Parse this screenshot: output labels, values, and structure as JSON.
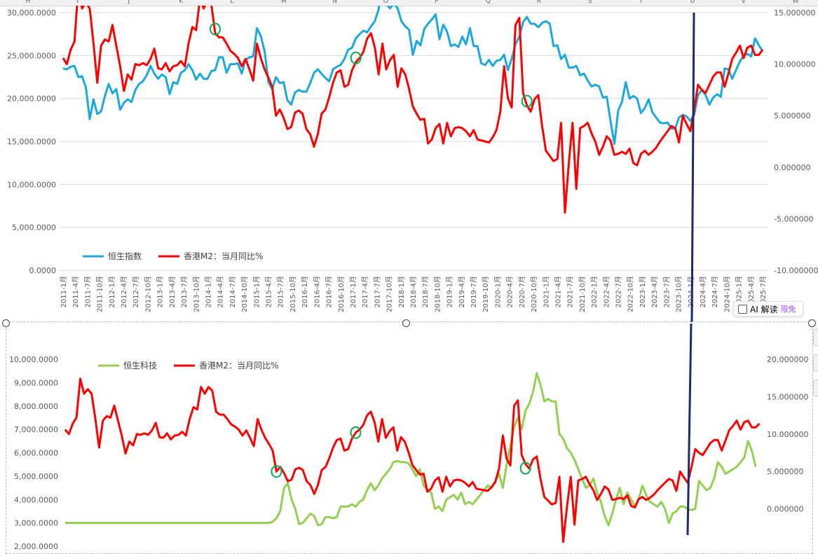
{
  "spreadsheet": {
    "column_headers": [
      "H",
      "I",
      "J",
      "K",
      "L",
      "M",
      "N",
      "O",
      "P",
      "Q",
      "R",
      "S",
      "T",
      "U",
      "V",
      "W"
    ]
  },
  "ai_badge": {
    "label": "AI 解读",
    "free_label": "限免"
  },
  "chart_data": [
    {
      "type": "line",
      "title": "",
      "x_labels": [
        "2011-1月",
        "2011-4月",
        "2011-7月",
        "2011-10月",
        "2012-1月",
        "2012-4月",
        "2012-7月",
        "2012-10月",
        "2013-1月",
        "2013-4月",
        "2013-7月",
        "2013-10月",
        "2014-1月",
        "2014-4月",
        "2014-7月",
        "2014-10月",
        "2015-1月",
        "2015-4月",
        "2015-7月",
        "2015-10月",
        "2016-1月",
        "2016-4月",
        "2016-7月",
        "2016-10月",
        "2017-1月",
        "2017-4月",
        "2017-7月",
        "2017-10月",
        "2018-1月",
        "2018-4月",
        "2018-7月",
        "2018-10月",
        "2019-1月",
        "2019-4月",
        "2019-7月",
        "2019-10月",
        "2020-1月",
        "2020-4月",
        "2020-7月",
        "2020-10月",
        "2021-1月",
        "2021-4月",
        "2021-7月",
        "2021-10月",
        "2022-1月",
        "2022-4月",
        "2022-7月",
        "2022-10月",
        "2023-1月",
        "2023-4月",
        "2023-7月",
        "2023-10月",
        "2024-1月",
        "2024-4月",
        "2024-7月",
        "2024-10月",
        "2025-1月",
        "2025-4月",
        "2025-7月"
      ],
      "y_left": {
        "min": 0,
        "max": 30000,
        "ticks": [
          "0.0000",
          "5,000.0000",
          "10,000.0000",
          "15,000.0000",
          "20,000.0000",
          "25,000.0000",
          "30,000.0000"
        ]
      },
      "y_right": {
        "min": -10,
        "max": 15,
        "ticks": [
          "-10.000000",
          "-5.000000",
          "0.000000",
          "5.000000",
          "10.000000",
          "15.000000"
        ]
      },
      "grid": "horizontal",
      "legend": "bottom-left",
      "series": [
        {
          "name": "恒生指数",
          "axis": "left",
          "color": "#19a9e0",
          "values": [
            23500,
            23400,
            23700,
            23800,
            22500,
            22600,
            21300,
            17600,
            19900,
            18200,
            18500,
            20300,
            21700,
            20600,
            21100,
            18700,
            19500,
            19900,
            19600,
            21000,
            21700,
            22000,
            22700,
            23800,
            22900,
            22300,
            22800,
            22500,
            20500,
            21900,
            21700,
            23000,
            23300,
            24000,
            23300,
            22200,
            22900,
            22300,
            22300,
            23200,
            23300,
            24800,
            24800,
            23000,
            24000,
            24000,
            24100,
            22900,
            24500,
            24800,
            24900,
            28200,
            27300,
            25500,
            21900,
            21100,
            22500,
            21800,
            21900,
            19800,
            19300,
            20700,
            21000,
            20800,
            20800,
            21800,
            23000,
            23400,
            22900,
            22400,
            22000,
            23400,
            23700,
            23900,
            24600,
            25700,
            25900,
            27000,
            27500,
            27900,
            27700,
            28400,
            29000,
            30400,
            32900,
            31000,
            30500,
            31100,
            30500,
            29000,
            28400,
            28000,
            25100,
            26700,
            26200,
            28100,
            28700,
            29200,
            29800,
            26900,
            28600,
            27800,
            26100,
            26300,
            26000,
            27200,
            26300,
            28200,
            26100,
            26100,
            24100,
            23900,
            24500,
            23800,
            24400,
            24500,
            25100,
            23300,
            24600,
            26300,
            27200,
            28900,
            29500,
            28700,
            28700,
            28300,
            28800,
            29000,
            28700,
            26100,
            26200,
            24600,
            25100,
            23600,
            23600,
            23800,
            22700,
            22900,
            22100,
            21400,
            21600,
            21400,
            20100,
            20200,
            17400,
            14700,
            18600,
            19600,
            21900,
            20000,
            20300,
            20000,
            18300,
            18900,
            19900,
            18400,
            17800,
            17200,
            17100,
            17200,
            16500,
            16500,
            17800,
            18100,
            17900,
            17400,
            18100,
            20400,
            21000,
            20400,
            19300,
            20100,
            20500,
            20200,
            23500,
            23400,
            22300,
            23300,
            24300,
            25000,
            25200,
            24900,
            27000,
            26200,
            25500
          ]
        },
        {
          "name": "香港M2：当月同比%",
          "axis": "right",
          "color": "#ff0000",
          "values": [
            10.6,
            10.0,
            11.4,
            12.2,
            17.4,
            15.4,
            16.0,
            15.4,
            12.0,
            8.2,
            11.8,
            12.4,
            12.2,
            13.8,
            11.8,
            9.8,
            7.4,
            9.0,
            8.5,
            10.0,
            9.9,
            10.1,
            9.9,
            10.5,
            11.5,
            9.6,
            9.5,
            10.1,
            9.3,
            9.8,
            9.9,
            10.3,
            9.8,
            12.0,
            13.6,
            13.3,
            16.3,
            15.4,
            16.3,
            15.8,
            13.0,
            12.6,
            12.6,
            12.0,
            11.3,
            11.0,
            10.6,
            9.8,
            10.5,
            9.5,
            8.4,
            12.0,
            10.6,
            9.5,
            8.7,
            7.8,
            5.0,
            5.6,
            4.8,
            3.7,
            3.9,
            5.3,
            5.5,
            5.2,
            3.7,
            3.2,
            2.0,
            3.2,
            5.2,
            5.6,
            6.8,
            8.2,
            9.2,
            9.4,
            7.8,
            8.0,
            9.4,
            10.2,
            10.6,
            11.2,
            12.5,
            13.0,
            11.6,
            9.0,
            12.0,
            9.5,
            10.4,
            10.9,
            7.8,
            9.6,
            9.0,
            7.6,
            5.9,
            5.2,
            4.6,
            4.7,
            2.3,
            2.7,
            3.8,
            4.2,
            2.3,
            4.3,
            3.0,
            3.8,
            3.9,
            3.8,
            3.5,
            3.0,
            3.6,
            2.7,
            2.6,
            2.5,
            2.4,
            2.9,
            3.6,
            5.4,
            9.8,
            6.7,
            5.8,
            13.8,
            14.5,
            7.2,
            6.0,
            5.4,
            6.6,
            7.0,
            4.0,
            1.6,
            1.1,
            0.6,
            0.8,
            4.3,
            -4.4,
            0.3,
            4.3,
            -2.1,
            3.8,
            4.0,
            4.3,
            3.3,
            2.5,
            1.2,
            2.0,
            3.0,
            2.6,
            1.2,
            1.3,
            1.5,
            1.3,
            1.8,
            0.4,
            0.2,
            1.3,
            1.6,
            1.2,
            1.5,
            1.9,
            2.5,
            3.0,
            3.5,
            4.0,
            3.8,
            2.4,
            5.0,
            4.2,
            3.5,
            5.6,
            8.0,
            7.5,
            7.2,
            8.0,
            8.8,
            9.2,
            9.2,
            7.8,
            9.1,
            10.5,
            11.1,
            11.8,
            10.6,
            11.6,
            11.8,
            10.9,
            10.9,
            11.4
          ]
        }
      ],
      "annotations": [
        "green-circle",
        "green-circle",
        "green-circle",
        "green-circle"
      ]
    },
    {
      "type": "line",
      "title": "",
      "y_left": {
        "min": 2000,
        "max": 10000,
        "ticks": [
          "2,000.0000",
          "3,000.0000",
          "4,000.0000",
          "5,000.0000",
          "6,000.0000",
          "7,000.0000",
          "8,000.0000",
          "9,000.0000",
          "10,000.0000"
        ]
      },
      "y_right": {
        "min": -5,
        "max": 20,
        "ticks": [
          "0.000000",
          "5.000000",
          "10.000000",
          "15.000000",
          "20.000000"
        ]
      },
      "grid": "none",
      "legend": "top-left",
      "series": [
        {
          "name": "恒生科技",
          "axis": "left",
          "color": "#92d050",
          "values": [
            3000,
            3000,
            3000,
            3000,
            3000,
            3000,
            3000,
            3000,
            3000,
            3000,
            3000,
            3000,
            3000,
            3000,
            3000,
            3000,
            3000,
            3000,
            3000,
            3000,
            3000,
            3000,
            3000,
            3000,
            3000,
            3000,
            3000,
            3000,
            3000,
            3000,
            3000,
            3000,
            3000,
            3000,
            3000,
            3000,
            3000,
            3000,
            3000,
            3000,
            3000,
            3000,
            3000,
            3000,
            3000,
            3000,
            3000,
            3000,
            3000,
            3000,
            3000,
            3000,
            3000,
            3000,
            3000,
            3050,
            3200,
            3500,
            4500,
            4700,
            4000,
            3600,
            2950,
            3000,
            3200,
            3400,
            3300,
            2900,
            2950,
            3250,
            3250,
            3200,
            3250,
            3700,
            3700,
            3700,
            3800,
            3700,
            3900,
            4000,
            4400,
            4700,
            4400,
            4600,
            4900,
            5100,
            5300,
            5600,
            5650,
            5600,
            5600,
            5550,
            5300,
            5000,
            5300,
            4600,
            4400,
            4300,
            3600,
            3700,
            3500,
            4000,
            4100,
            4200,
            4000,
            4300,
            3800,
            3900,
            3800,
            4000,
            4200,
            4400,
            4600,
            4500,
            4800,
            5100,
            4500,
            5500,
            6300,
            7100,
            7500,
            7000,
            7800,
            8100,
            8600,
            9400,
            8900,
            8200,
            8300,
            8200,
            8200,
            6800,
            6600,
            6200,
            6000,
            5700,
            5300,
            4900,
            4500,
            4600,
            4900,
            4300,
            3900,
            3300,
            2900,
            3400,
            4000,
            4500,
            3800,
            4300,
            4000,
            3700,
            4000,
            4600,
            4200,
            3900,
            3800,
            3700,
            3900,
            3600,
            3000,
            3400,
            3500,
            3700,
            3700,
            3600,
            3550,
            3600,
            4800,
            4600,
            4400,
            4500,
            4900,
            5600,
            5400,
            5100,
            5200,
            5300,
            5400,
            5600,
            5800,
            6500,
            6100,
            5400
          ]
        },
        {
          "name": "香港M2：当月同比%",
          "axis": "right",
          "color": "#ff0000",
          "values": [
            10.6,
            10.0,
            11.4,
            12.2,
            17.4,
            15.4,
            16.0,
            15.4,
            12.0,
            8.2,
            11.8,
            12.4,
            12.2,
            13.8,
            11.8,
            9.8,
            7.4,
            9.0,
            8.5,
            10.0,
            9.9,
            10.1,
            9.9,
            10.5,
            11.5,
            9.6,
            9.5,
            10.1,
            9.3,
            9.8,
            9.9,
            10.3,
            9.8,
            12.0,
            13.6,
            13.3,
            16.3,
            15.4,
            16.3,
            15.8,
            13.0,
            12.6,
            12.6,
            12.0,
            11.3,
            11.0,
            10.6,
            9.8,
            10.5,
            9.5,
            8.4,
            12.0,
            10.6,
            9.5,
            8.7,
            7.8,
            5.0,
            5.6,
            4.8,
            3.7,
            3.9,
            5.3,
            5.5,
            5.2,
            3.7,
            3.2,
            2.0,
            3.2,
            5.2,
            5.6,
            6.8,
            8.2,
            9.2,
            9.4,
            7.8,
            8.0,
            9.4,
            10.2,
            10.6,
            11.2,
            12.5,
            13.0,
            11.6,
            9.0,
            12.0,
            9.5,
            10.4,
            10.9,
            7.8,
            9.6,
            9.0,
            7.6,
            5.9,
            5.2,
            4.6,
            4.7,
            2.3,
            2.7,
            3.8,
            4.2,
            2.3,
            4.3,
            3.0,
            3.8,
            3.9,
            3.8,
            3.5,
            3.0,
            3.6,
            2.7,
            2.6,
            2.5,
            2.4,
            2.9,
            3.6,
            5.4,
            9.8,
            6.7,
            5.8,
            13.8,
            14.5,
            7.2,
            6.0,
            5.4,
            6.6,
            7.0,
            4.0,
            1.6,
            1.1,
            0.6,
            0.8,
            4.3,
            -4.4,
            0.3,
            4.3,
            -2.1,
            3.8,
            4.0,
            4.3,
            3.3,
            2.5,
            1.2,
            2.0,
            3.0,
            2.6,
            1.2,
            1.3,
            1.5,
            1.3,
            1.8,
            0.4,
            0.2,
            1.3,
            1.6,
            1.2,
            1.5,
            1.9,
            2.5,
            3.0,
            3.5,
            4.0,
            3.8,
            2.4,
            5.0,
            4.2,
            3.5,
            5.6,
            8.0,
            7.5,
            7.2,
            8.0,
            8.8,
            9.2,
            9.2,
            7.8,
            9.1,
            10.5,
            11.1,
            11.8,
            10.6,
            11.6,
            11.8,
            10.9,
            10.9,
            11.4
          ]
        }
      ],
      "annotations": [
        "green-circle",
        "green-circle",
        "green-circle"
      ]
    }
  ]
}
